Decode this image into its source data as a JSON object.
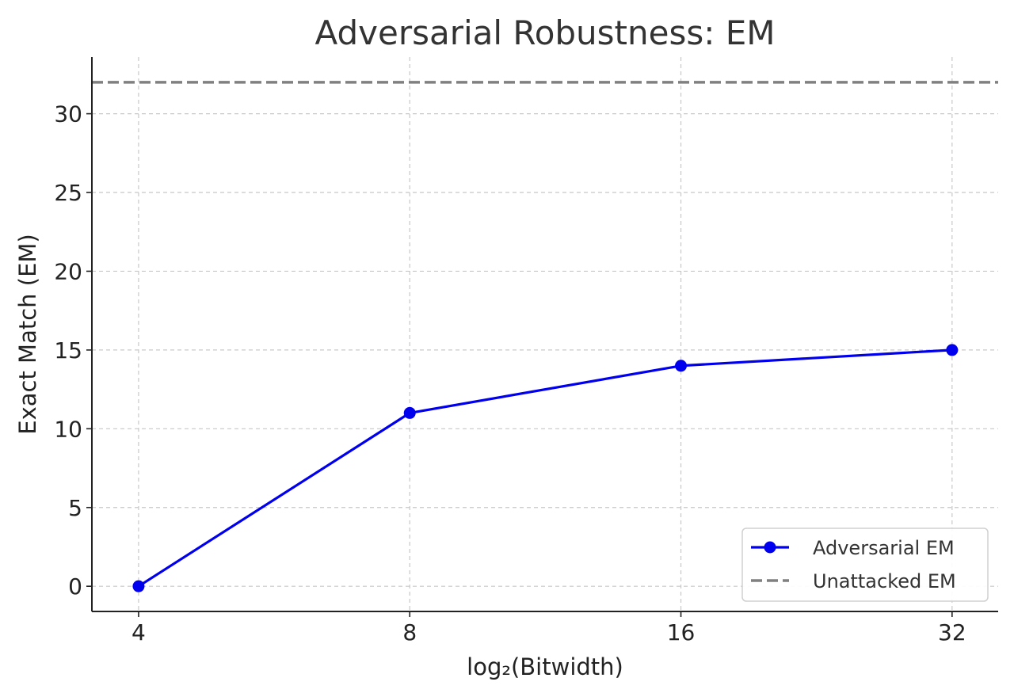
{
  "chart_data": {
    "type": "line",
    "title": "Adversarial Robustness: EM",
    "xlabel": "log₂(Bitwidth)",
    "ylabel": "Exact Match (EM)",
    "x": [
      4,
      8,
      16,
      32
    ],
    "x_tick_labels": [
      "4",
      "8",
      "16",
      "32"
    ],
    "x_scale": "log2",
    "xlim": [
      3.55,
      36
    ],
    "y_ticks": [
      0,
      5,
      10,
      15,
      20,
      25,
      30
    ],
    "ylim": [
      -1.6,
      33.6
    ],
    "grid": true,
    "series": [
      {
        "name": "Adversarial EM",
        "values": [
          0,
          11,
          14,
          15
        ],
        "color": "#0000ee",
        "marker": "circle",
        "line_style": "solid"
      }
    ],
    "reference_lines": [
      {
        "name": "Unattacked EM",
        "y": 32,
        "color": "#808080",
        "line_style": "dashed"
      }
    ],
    "legend_position": "bottom-right"
  }
}
